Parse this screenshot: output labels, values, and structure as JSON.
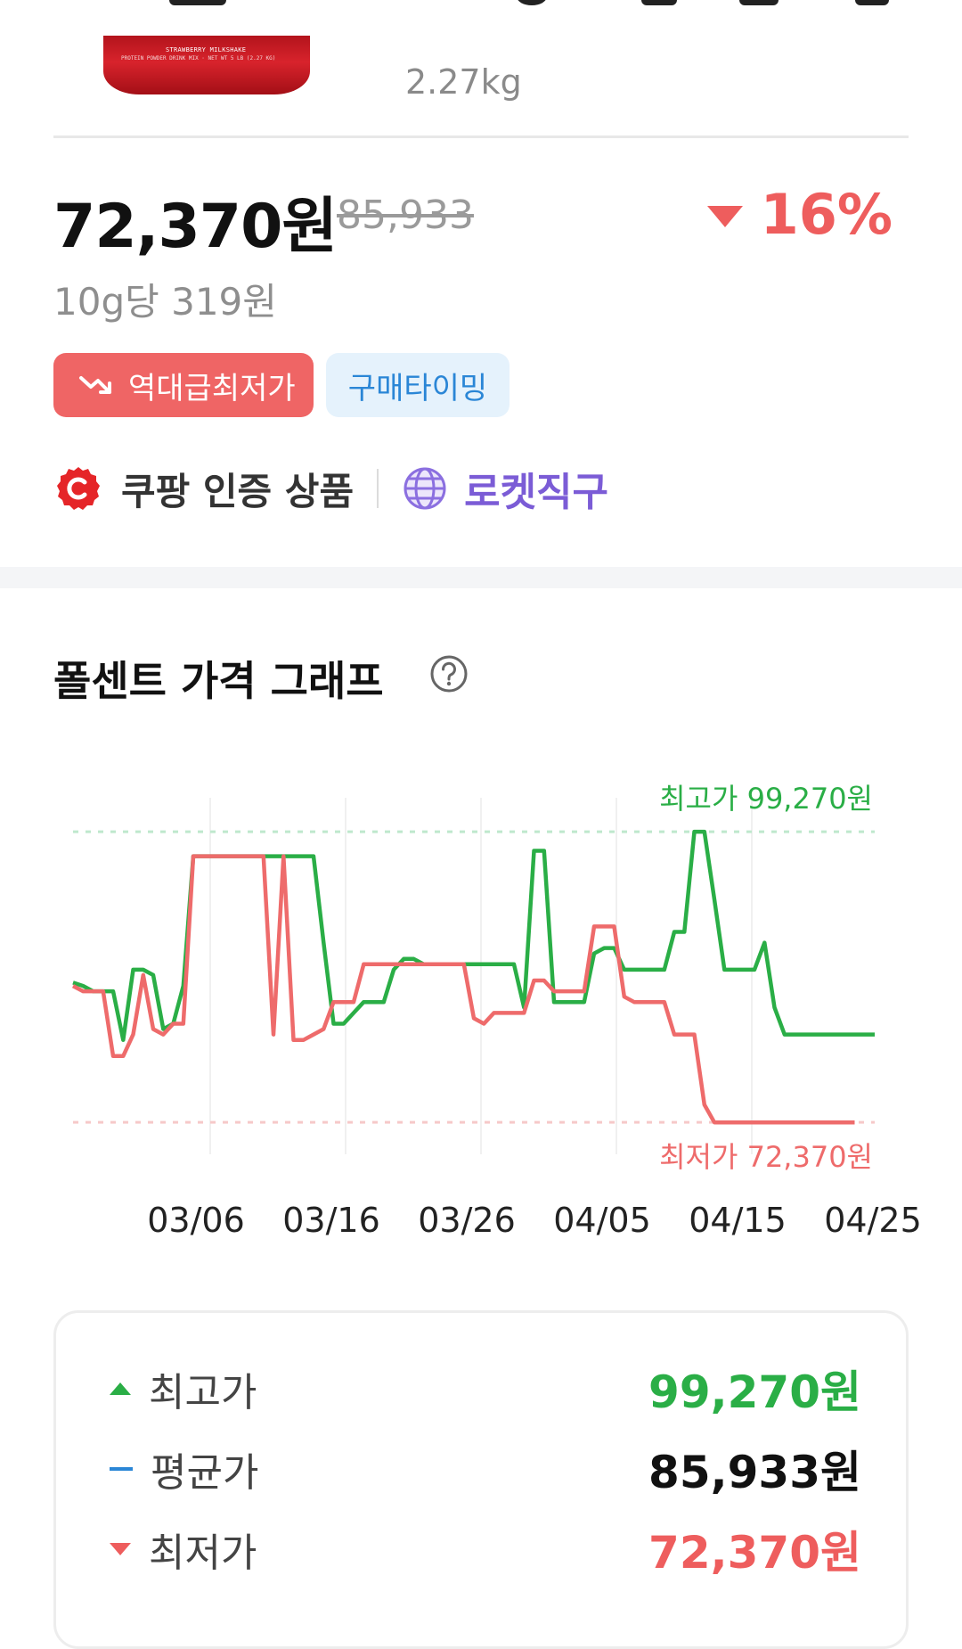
{
  "product": {
    "thumb_label": "STRAWBERRY MILKSHAKE",
    "thumb_sublabel": "PROTEIN POWDER DRINK MIX · NET WT 5 LB (2.27 KG)",
    "title_cut": "",
    "size": "2.27kg"
  },
  "price": {
    "current": "72,370원",
    "original": "85,933",
    "discount": "16%",
    "unit_price": "10g당 319원"
  },
  "badges": {
    "lowest": "역대급최저가",
    "timing": "구매타이밍"
  },
  "cert": {
    "coupang": "쿠팡 인증 상품",
    "rocket": "로켓직구"
  },
  "chart_section": {
    "title": "폴센트 가격 그래프"
  },
  "colors": {
    "high": "#2aae46",
    "low": "#ee6b6b",
    "avg": "#2a86d6",
    "discount": "#ee5d5d",
    "rocket": "#7b5cd6"
  },
  "chart_data": {
    "type": "line",
    "x_ticks": [
      "03/06",
      "03/16",
      "03/26",
      "04/05",
      "04/15",
      "04/25"
    ],
    "ylim": [
      69000,
      102000
    ],
    "max_label": "최고가 99,270원",
    "min_label": "최저가 72,370원",
    "max_value": 99270,
    "min_value": 72370,
    "series": [
      {
        "color": "#2aae46",
        "x": [
          0,
          1,
          2,
          3,
          4,
          5,
          6,
          7,
          8,
          9,
          10,
          11,
          12,
          13,
          14,
          15,
          16,
          17,
          18,
          19,
          20,
          21,
          22,
          23,
          24,
          25,
          26,
          27,
          28,
          29,
          30,
          31,
          32,
          33,
          34,
          35,
          36,
          37,
          38,
          39,
          40,
          41,
          42,
          43,
          44,
          45,
          46,
          47,
          48,
          49,
          50,
          51,
          52,
          53,
          54,
          55,
          56,
          57,
          58,
          59,
          60,
          61,
          62,
          63,
          64,
          65,
          66,
          67,
          68,
          69,
          70,
          71,
          72,
          73,
          74,
          75,
          76,
          77,
          78,
          79,
          80
        ],
        "y": [
          85300,
          85000,
          84500,
          84500,
          84500,
          80000,
          86500,
          86500,
          86000,
          81000,
          81500,
          85000,
          97000,
          97000,
          97000,
          97000,
          97000,
          97000,
          97000,
          97000,
          97000,
          97000,
          97000,
          97000,
          97000,
          89000,
          81500,
          81500,
          82500,
          83500,
          83500,
          83500,
          86500,
          87500,
          87500,
          87000,
          87000,
          87000,
          87000,
          87000,
          87000,
          87000,
          87000,
          87000,
          87000,
          83000,
          97500,
          97500,
          83500,
          83500,
          83500,
          83500,
          88000,
          88500,
          88500,
          86500,
          86500,
          86500,
          86500,
          86500,
          90000,
          90000,
          99270,
          99270,
          93000,
          86500,
          86500,
          86500,
          86500,
          89000,
          83000,
          80500,
          80500,
          80500,
          80500,
          80500,
          80500,
          80500,
          80500,
          80500,
          80500
        ]
      },
      {
        "color": "#ee6b6b",
        "x": [
          0,
          1,
          2,
          3,
          4,
          5,
          6,
          7,
          8,
          9,
          10,
          11,
          12,
          13,
          14,
          15,
          16,
          17,
          18,
          19,
          20,
          21,
          22,
          23,
          24,
          25,
          26,
          27,
          28,
          29,
          30,
          31,
          32,
          33,
          34,
          35,
          36,
          37,
          38,
          39,
          40,
          41,
          42,
          43,
          44,
          45,
          46,
          47,
          48,
          49,
          50,
          51,
          52,
          53,
          54,
          55,
          56,
          57,
          58,
          59,
          60,
          61,
          62,
          63,
          64,
          65,
          66,
          67,
          68,
          69,
          70,
          71,
          72,
          73,
          74,
          75,
          76,
          77,
          78
        ],
        "y": [
          85000,
          84500,
          84500,
          84500,
          78500,
          78500,
          80500,
          86000,
          81000,
          80500,
          81500,
          81500,
          97000,
          97000,
          97000,
          97000,
          97000,
          97000,
          97000,
          97000,
          80500,
          97000,
          80000,
          80000,
          80500,
          81000,
          83500,
          83500,
          83500,
          87000,
          87000,
          87000,
          87000,
          87000,
          87000,
          87000,
          87000,
          87000,
          87000,
          87000,
          82000,
          81500,
          82500,
          82500,
          82500,
          82500,
          85500,
          85500,
          84500,
          84500,
          84500,
          84500,
          90500,
          90500,
          90500,
          84000,
          83500,
          83500,
          83500,
          83500,
          80500,
          80500,
          80500,
          74000,
          72370,
          72370,
          72370,
          72370,
          72370,
          72370,
          72370,
          72370,
          72370,
          72370,
          72370,
          72370,
          72370,
          72370,
          72370
        ]
      }
    ]
  },
  "summary": {
    "high_label": "최고가",
    "high_value": "99,270원",
    "avg_label": "평균가",
    "avg_value": "85,933원",
    "low_label": "최저가",
    "low_value": "72,370원"
  }
}
